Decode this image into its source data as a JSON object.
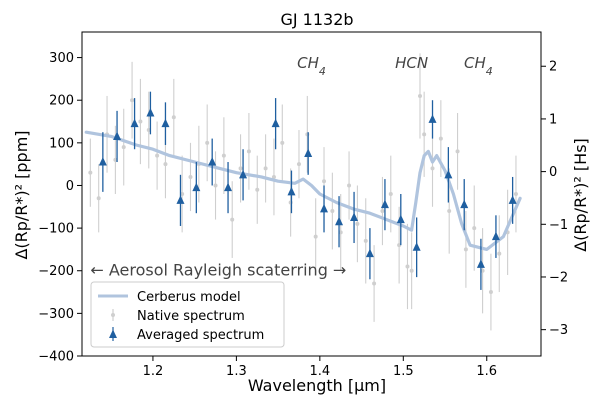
{
  "chart_data": {
    "type": "scatter",
    "title": "GJ 1132b",
    "xlabel": "Wavelength [μm]",
    "ylabel_left": "Δ(Rp/R*)² [ppm]",
    "ylabel_right": "Δ(Rp/R*)² [Hs]",
    "xlim": [
      1.115,
      1.665
    ],
    "ylim": [
      -400,
      360
    ],
    "ylim_right": [
      -3.5,
      2.65
    ],
    "x_ticks": [
      1.2,
      1.3,
      1.4,
      1.5,
      1.6
    ],
    "x_tick_labels": [
      "1.2",
      "1.3",
      "1.4",
      "1.5",
      "1.6"
    ],
    "y_ticks": [
      -400,
      -300,
      -200,
      -100,
      0,
      100,
      200,
      300
    ],
    "y_tick_labels": [
      "−400",
      "−300",
      "−200",
      "−100",
      "0",
      "100",
      "200",
      "300"
    ],
    "y_right_ticks": [
      -3,
      -2,
      -1,
      0,
      1,
      2
    ],
    "y_right_tick_labels": [
      "−3",
      "−2",
      "−1",
      "0",
      "1",
      "2"
    ],
    "grid": false,
    "legend_position": "lower-left",
    "annotations": {
      "molecules": [
        {
          "label": "CH",
          "sub": "4",
          "x": 1.39,
          "y": 275
        },
        {
          "label": "HCN",
          "sub": "",
          "x": 1.51,
          "y": 275
        },
        {
          "label": "CH",
          "sub": "4",
          "x": 1.59,
          "y": 275
        }
      ],
      "aerosol": {
        "text": "← Aerosol Rayleigh scaterring →",
        "x": 1.125,
        "y": -200
      }
    },
    "series": [
      {
        "name": "Cerberus model",
        "kind": "line",
        "color": "#b0c4de",
        "x": [
          1.12,
          1.15,
          1.18,
          1.2,
          1.22,
          1.25,
          1.28,
          1.3,
          1.33,
          1.35,
          1.37,
          1.38,
          1.39,
          1.4,
          1.42,
          1.44,
          1.46,
          1.48,
          1.5,
          1.51,
          1.515,
          1.52,
          1.525,
          1.53,
          1.535,
          1.54,
          1.55,
          1.56,
          1.57,
          1.58,
          1.6,
          1.62,
          1.64
        ],
        "y": [
          125,
          115,
          95,
          85,
          70,
          55,
          40,
          30,
          20,
          10,
          5,
          15,
          0,
          -20,
          -40,
          -55,
          -65,
          -80,
          -95,
          -105,
          -40,
          30,
          70,
          80,
          55,
          70,
          35,
          -20,
          -90,
          -140,
          -150,
          -120,
          -30
        ]
      },
      {
        "name": "Native spectrum",
        "kind": "errorbar",
        "color": "#cfcfcf",
        "x": [
          1.125,
          1.135,
          1.145,
          1.155,
          1.165,
          1.175,
          1.185,
          1.195,
          1.205,
          1.215,
          1.225,
          1.235,
          1.245,
          1.255,
          1.265,
          1.275,
          1.285,
          1.295,
          1.305,
          1.315,
          1.325,
          1.335,
          1.345,
          1.355,
          1.365,
          1.375,
          1.385,
          1.395,
          1.405,
          1.415,
          1.425,
          1.435,
          1.445,
          1.455,
          1.465,
          1.475,
          1.485,
          1.495,
          1.505,
          1.51,
          1.52,
          1.525,
          1.535,
          1.545,
          1.555,
          1.565,
          1.575,
          1.585,
          1.595,
          1.605,
          1.615,
          1.625,
          1.635
        ],
        "y": [
          30,
          -30,
          120,
          60,
          90,
          200,
          150,
          130,
          70,
          50,
          160,
          -20,
          20,
          50,
          100,
          0,
          70,
          -80,
          40,
          80,
          -10,
          40,
          20,
          100,
          -40,
          50,
          120,
          -120,
          10,
          -60,
          -110,
          0,
          -90,
          -130,
          -230,
          -60,
          -20,
          -140,
          -190,
          -200,
          210,
          120,
          40,
          110,
          -60,
          80,
          -150,
          -100,
          -200,
          -250,
          -160,
          -110,
          -20
        ],
        "err": [
          80,
          80,
          90,
          80,
          90,
          90,
          100,
          90,
          80,
          80,
          90,
          90,
          80,
          90,
          90,
          80,
          90,
          90,
          80,
          90,
          80,
          80,
          90,
          90,
          80,
          80,
          90,
          90,
          80,
          90,
          90,
          80,
          90,
          100,
          90,
          80,
          90,
          90,
          100,
          90,
          100,
          100,
          90,
          90,
          100,
          90,
          90,
          100,
          100,
          90,
          90,
          100,
          90
        ]
      },
      {
        "name": "Averaged spectrum",
        "kind": "errorbar",
        "color": "#1f5fa0",
        "x": [
          1.14,
          1.157,
          1.178,
          1.197,
          1.215,
          1.233,
          1.252,
          1.271,
          1.29,
          1.308,
          1.347,
          1.366,
          1.386,
          1.405,
          1.423,
          1.441,
          1.46,
          1.478,
          1.497,
          1.516,
          1.535,
          1.554,
          1.573,
          1.593,
          1.611,
          1.631
        ],
        "y": [
          55,
          115,
          145,
          170,
          145,
          -35,
          -5,
          55,
          -5,
          25,
          145,
          -15,
          75,
          -55,
          -85,
          -75,
          -160,
          -45,
          -80,
          -145,
          155,
          25,
          -45,
          -185,
          -120,
          -35
        ],
        "err": [
          70,
          60,
          60,
          50,
          50,
          60,
          60,
          55,
          60,
          60,
          60,
          50,
          50,
          55,
          60,
          60,
          60,
          60,
          60,
          70,
          45,
          65,
          60,
          60,
          50,
          55
        ]
      }
    ]
  }
}
